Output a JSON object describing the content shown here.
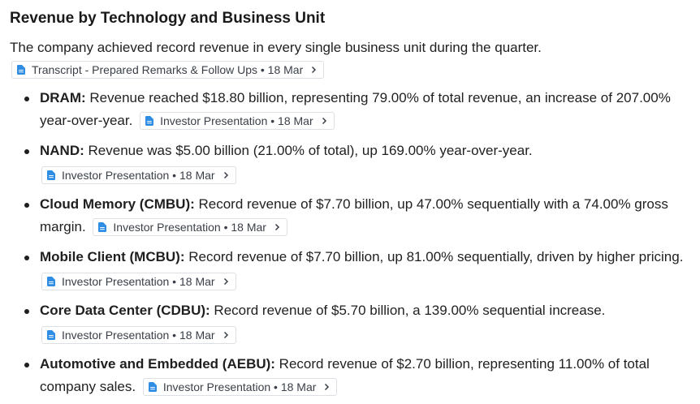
{
  "title": "Revenue by Technology and Business Unit",
  "intro": {
    "text": "The company achieved record revenue in every single business unit during the quarter.",
    "source": "Transcript - Prepared Remarks & Follow Ups • 18 Mar"
  },
  "colors": {
    "icon_accent": "#2f8de4",
    "chip_border": "#dcdfe4",
    "text": "#1f1f1f"
  },
  "icons": {
    "source": "document-icon",
    "expand": "chevron-right-icon"
  },
  "items": [
    {
      "label": "DRAM:",
      "text": " Revenue reached $18.80 billion, representing 79.00% of total revenue, an increase of 207.00% year-over-year.",
      "source": "Investor Presentation • 18 Mar"
    },
    {
      "label": "NAND:",
      "text": " Revenue was $5.00 billion (21.00% of total), up 169.00% year-over-year.",
      "source": "Investor Presentation • 18 Mar"
    },
    {
      "label": "Cloud Memory (CMBU):",
      "text": " Record revenue of $7.70 billion, up 47.00% sequentially with a 74.00% gross margin.",
      "source": "Investor Presentation • 18 Mar"
    },
    {
      "label": "Mobile Client (MCBU):",
      "text": " Record revenue of $7.70 billion, up 81.00% sequentially, driven by higher pricing.",
      "source": "Investor Presentation • 18 Mar"
    },
    {
      "label": "Core Data Center (CDBU):",
      "text": " Record revenue of $5.70 billion, a 139.00% sequential increase.",
      "source": "Investor Presentation • 18 Mar"
    },
    {
      "label": "Automotive and Embedded (AEBU):",
      "text": " Record revenue of $2.70 billion, representing 11.00% of total company sales.",
      "source": "Investor Presentation • 18 Mar"
    }
  ]
}
